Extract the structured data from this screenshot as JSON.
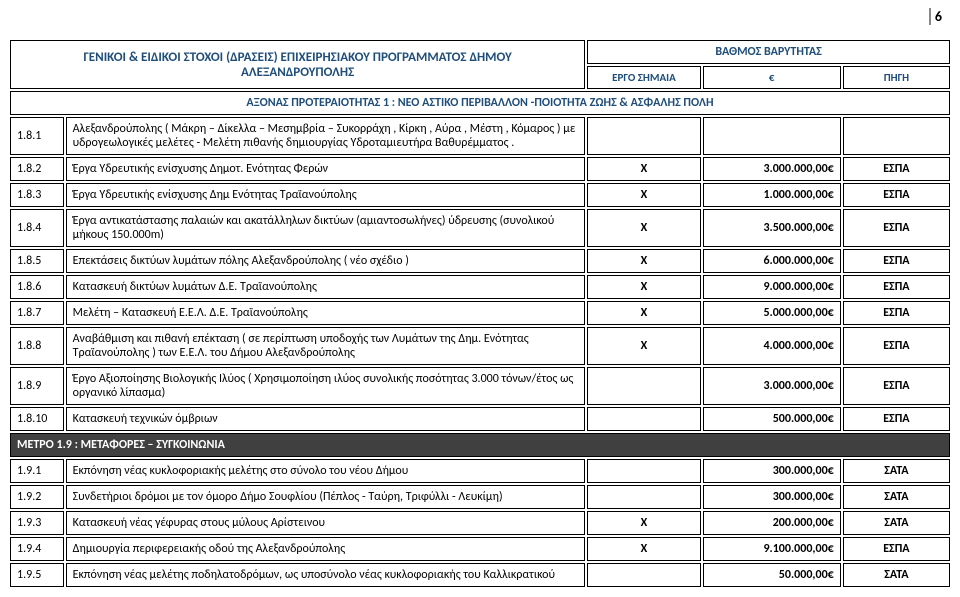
{
  "pageNumber": "6",
  "header": {
    "title_l1": "ΓΕΝΙΚΟΙ & ΕΙΔΙΚΟΙ ΣΤΟΧΟΙ (ΔΡΑΣΕΙΣ) ΕΠΙΧΕΙΡΗΣΙΑΚΟΥ ΠΡΟΓΡΑΜΜΑΤΟΣ ΔΗΜΟΥ",
    "title_l2": "ΑΛΕΞΑΝΔΡΟΥΠΟΛΗΣ",
    "weight_title": "ΒΑΘΜΟΣ ΒΑΡΥΤΗΤΑΣ",
    "col_flag": "ΕΡΓΟ ΣΗΜΑΙΑ",
    "col_euro": "€",
    "col_src": "ΠΗΓΗ",
    "axis": "ΑΞΟΝΑΣ ΠΡΟΤΕΡΑΙΟΤΗΤΑΣ 1 :  ΝΕΟ ΑΣΤΙΚΟ ΠΕΡΙΒΑΛΛΟΝ -ΠΟΙΟΤΗΤΑ ΖΩΗΣ & ΑΣΦΑΛΗΣ ΠΟΛΗ"
  },
  "rows": [
    {
      "n": "1.8.1",
      "d": "Αλεξανδρούπολης ( Μάκρη – Δίκελλα – Μεσημβρία – Συκορράχη , Κίρκη , Αύρα , Μέστη , Κόμαρος ) με υδρογεωλογικές μελέτες - Μελέτη πιθανής δημιουργίας Υδροταμιευτήρα Βαθυρέμματος .",
      "f": "",
      "e": "",
      "s": ""
    },
    {
      "n": "1.8.2",
      "d": "Έργα Υδρευτικής ενίσχυσης Δημοτ. Ενότητας  Φερών",
      "f": "Χ",
      "e": "3.000.000,00€",
      "s": "ΕΣΠΑ"
    },
    {
      "n": "1.8.3",
      "d": "Έργα Υδρευτικής ενίσχυσης Δημ  Ενότητας  Τραϊανούπολης",
      "f": "Χ",
      "e": "1.000.000,00€",
      "s": "ΕΣΠΑ"
    },
    {
      "n": "1.8.4",
      "d": "Έργα αντικατάστασης παλαιών και ακατάλληλων δικτύων (αμιαντοσωλήνες) ύδρευσης (συνολικού  μήκους  150.000m)",
      "f": "Χ",
      "e": "3.500.000,00€",
      "s": "ΕΣΠΑ"
    },
    {
      "n": "1.8.5",
      "d": "Επεκτάσεις δικτύων λυμάτων πόλης Αλεξανδρούπολης ( νέο  σχέδιο )",
      "f": "Χ",
      "e": "6.000.000,00€",
      "s": "ΕΣΠΑ"
    },
    {
      "n": "1.8.6",
      "d": "Κατασκευή  δικτύων  λυμάτων  Δ.Ε.   Τραϊανούπολης",
      "f": "Χ",
      "e": "9.000.000,00€",
      "s": "ΕΣΠΑ"
    },
    {
      "n": "1.8.7",
      "d": "Μελέτη – Κατασκευή  Ε.Ε.Λ.   Δ.Ε.    Τραϊανούπολης",
      "f": "Χ",
      "e": "5.000.000,00€",
      "s": "ΕΣΠΑ"
    },
    {
      "n": "1.8.8",
      "d": "Αναβάθμιση και πιθανή επέκταση ( σε περίπτωση υποδοχής των Λυμάτων της Δημ. Ενότητας Τραϊανούπολης ) των Ε.Ε.Λ.  του  Δήμου  Αλεξανδρούπολης",
      "f": "Χ",
      "e": "4.000.000,00€",
      "s": "ΕΣΠΑ"
    },
    {
      "n": "1.8.9",
      "d": "Έργο Αξιοποίησης Βιολογικής Ιλύος    ( Χρησιμοποίηση ιλύος συνολικής ποσότητας 3.000 τόνων/έτος   ως  οργανικό  λίπασμα)",
      "f": "",
      "e": "3.000.000,00€",
      "s": "ΕΣΠΑ"
    },
    {
      "n": "1.8.10",
      "d": "Κατασκευή τεχνικών όμβριων",
      "f": "",
      "e": "500.000,00€",
      "s": "ΕΣΠΑ"
    }
  ],
  "metro": "ΜΕΤΡΟ 1.9 :  ΜΕΤΑΦΟΡΕΣ – ΣΥΓΚΟΙΝΩΝΙΑ",
  "rows2": [
    {
      "n": "1.9.1",
      "d": "Εκπόνηση νέας κυκλοφοριακής μελέτης στο σύνολο του νέου Δήμου",
      "f": "",
      "e": "300.000,00€",
      "s": "ΣΑΤΑ"
    },
    {
      "n": "1.9.2",
      "d": "Συνδετήριοι δρόμοι με τον όμορο Δήμο Σουφλίου (Πέπλος - Ταύρη, Τριφύλλι - Λευκίμη)",
      "f": "",
      "e": "300.000,00€",
      "s": "ΣΑΤΑ"
    },
    {
      "n": "1.9.3",
      "d": "Κατασκευή νέας γέφυρας στους μύλους Αρίστεινου",
      "f": "Χ",
      "e": "200.000,00€",
      "s": "ΣΑΤΑ"
    },
    {
      "n": "1.9.4",
      "d": "Δημιουργία περιφερειακής οδού της Αλεξανδρούπολης",
      "f": "Χ",
      "e": "9.100.000,00€",
      "s": "ΕΣΠΑ"
    },
    {
      "n": "1.9.5",
      "d": "Εκπόνηση νέας μελέτης ποδηλατοδρόμων, ως υποσύνολο νέας κυκλοφοριακής του Καλλικρατικού",
      "f": "",
      "e": "50.000,00€",
      "s": "ΣΑΤΑ"
    }
  ],
  "colors": {
    "header_text": "#1f4e79",
    "metro_bg": "#404040",
    "border": "#000000"
  }
}
